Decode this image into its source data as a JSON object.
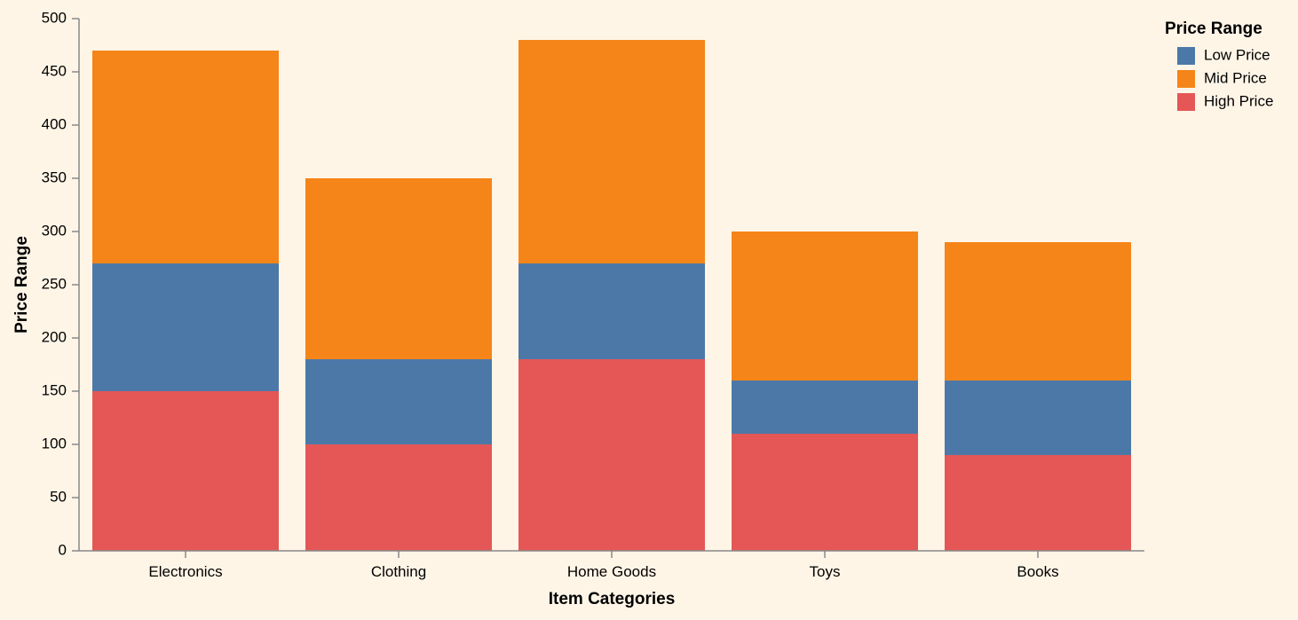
{
  "chart_data": {
    "type": "bar",
    "stacked": true,
    "categories": [
      "Electronics",
      "Clothing",
      "Home Goods",
      "Toys",
      "Books"
    ],
    "series": [
      {
        "name": "High Price",
        "color": "#e45756",
        "values": [
          150,
          100,
          180,
          110,
          90
        ]
      },
      {
        "name": "Low Price",
        "color": "#4c78a8",
        "values": [
          120,
          80,
          90,
          50,
          70
        ]
      },
      {
        "name": "Mid Price",
        "color": "#f58518",
        "values": [
          200,
          170,
          210,
          140,
          130
        ]
      }
    ],
    "xlabel": "Item Categories",
    "ylabel": "Price Range",
    "ylim": [
      0,
      500
    ],
    "yticks": [
      0,
      50,
      100,
      150,
      200,
      250,
      300,
      350,
      400,
      450,
      500
    ],
    "grid": false,
    "legend": {
      "title": "Price Range",
      "placement": "top-right",
      "items": [
        {
          "label": "Low Price",
          "color": "#4c78a8"
        },
        {
          "label": "Mid Price",
          "color": "#f58518"
        },
        {
          "label": "High Price",
          "color": "#e45756"
        }
      ]
    }
  }
}
